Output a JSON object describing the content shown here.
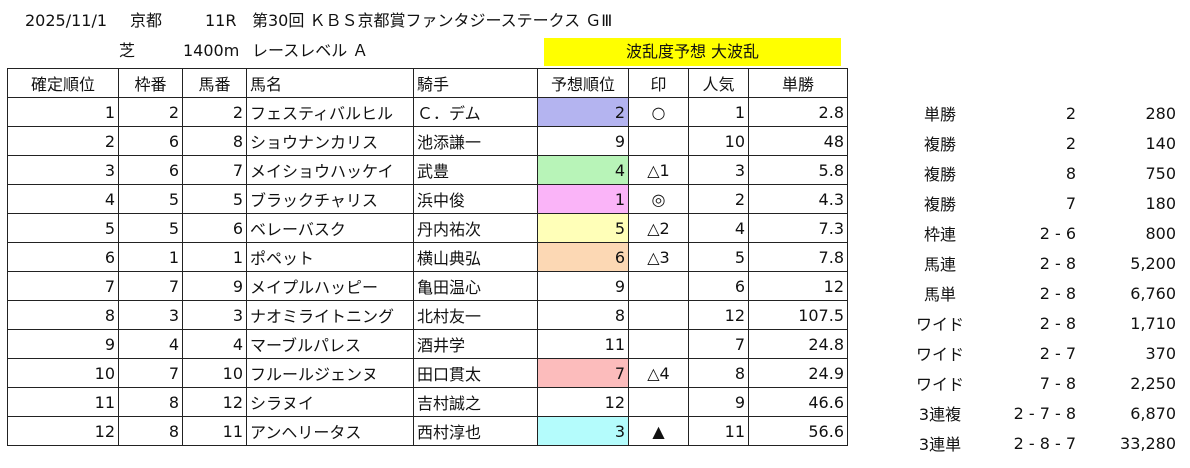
{
  "header": {
    "date": "2025/11/1",
    "venue": "京都",
    "race_no": "11R",
    "race_name": "第30回 ＫＢＳ京都賞ファンタジーステークス ＧⅢ",
    "surface": "芝",
    "distance": "1400m",
    "level": "レースレベル Ａ",
    "upset_label": "波乱度予想 大波乱"
  },
  "columns": [
    "確定順位",
    "枠番",
    "馬番",
    "馬名",
    "騎手",
    "予想順位",
    "印",
    "人気",
    "単勝"
  ],
  "colors": {
    "highlight_yellow": "#ffff00",
    "pred_2": "#b4b4f0",
    "pred_4": "#b8f4b8",
    "pred_1": "#fab4f8",
    "pred_5": "#ffffb8",
    "pred_6": "#fcd8b4",
    "pred_7": "#fcbcbc",
    "pred_3": "#b4fcfc"
  },
  "rows": [
    {
      "pos": "1",
      "waku": "2",
      "umaban": "2",
      "horse": "フェスティバルヒル",
      "jockey": "Ｃ．デム",
      "pred": "2",
      "mark": "○",
      "pop": "1",
      "odds": "2.8",
      "color": "#b4b4f0"
    },
    {
      "pos": "2",
      "waku": "6",
      "umaban": "8",
      "horse": "ショウナンカリス",
      "jockey": "池添謙一",
      "pred": "9",
      "mark": "",
      "pop": "10",
      "odds": "48",
      "color": ""
    },
    {
      "pos": "3",
      "waku": "6",
      "umaban": "7",
      "horse": "メイショウハッケイ",
      "jockey": "武豊",
      "pred": "4",
      "mark": "△1",
      "pop": "3",
      "odds": "5.8",
      "color": "#b8f4b8"
    },
    {
      "pos": "4",
      "waku": "5",
      "umaban": "5",
      "horse": "ブラックチャリス",
      "jockey": "浜中俊",
      "pred": "1",
      "mark": "◎",
      "pop": "2",
      "odds": "4.3",
      "color": "#fab4f8"
    },
    {
      "pos": "5",
      "waku": "5",
      "umaban": "6",
      "horse": "ベレーバスク",
      "jockey": "丹内祐次",
      "pred": "5",
      "mark": "△2",
      "pop": "4",
      "odds": "7.3",
      "color": "#ffffb8"
    },
    {
      "pos": "6",
      "waku": "1",
      "umaban": "1",
      "horse": "ポペット",
      "jockey": "横山典弘",
      "pred": "6",
      "mark": "△3",
      "pop": "5",
      "odds": "7.8",
      "color": "#fcd8b4"
    },
    {
      "pos": "7",
      "waku": "7",
      "umaban": "9",
      "horse": "メイプルハッピー",
      "jockey": "亀田温心",
      "pred": "9",
      "mark": "",
      "pop": "6",
      "odds": "12",
      "color": ""
    },
    {
      "pos": "8",
      "waku": "3",
      "umaban": "3",
      "horse": "ナオミライトニング",
      "jockey": "北村友一",
      "pred": "8",
      "mark": "",
      "pop": "12",
      "odds": "107.5",
      "color": ""
    },
    {
      "pos": "9",
      "waku": "4",
      "umaban": "4",
      "horse": "マーブルパレス",
      "jockey": "酒井学",
      "pred": "11",
      "mark": "",
      "pop": "7",
      "odds": "24.8",
      "color": ""
    },
    {
      "pos": "10",
      "waku": "7",
      "umaban": "10",
      "horse": "フルールジェンヌ",
      "jockey": "田口貫太",
      "pred": "7",
      "mark": "△4",
      "pop": "8",
      "odds": "24.9",
      "color": "#fcbcbc"
    },
    {
      "pos": "11",
      "waku": "8",
      "umaban": "12",
      "horse": "シラヌイ",
      "jockey": "吉村誠之",
      "pred": "12",
      "mark": "",
      "pop": "9",
      "odds": "46.6",
      "color": ""
    },
    {
      "pos": "12",
      "waku": "8",
      "umaban": "11",
      "horse": "アンヘリータス",
      "jockey": "西村淳也",
      "pred": "3",
      "mark": "▲",
      "pop": "11",
      "odds": "56.6",
      "color": "#b4fcfc"
    }
  ],
  "payouts": [
    {
      "kind": "単勝",
      "combo": "2",
      "amount": "280"
    },
    {
      "kind": "複勝",
      "combo": "2",
      "amount": "140"
    },
    {
      "kind": "複勝",
      "combo": "8",
      "amount": "750"
    },
    {
      "kind": "複勝",
      "combo": "7",
      "amount": "180"
    },
    {
      "kind": "枠連",
      "combo": "2 - 6",
      "amount": "800"
    },
    {
      "kind": "馬連",
      "combo": "2 - 8",
      "amount": "5,200"
    },
    {
      "kind": "馬単",
      "combo": "2 - 8",
      "amount": "6,760"
    },
    {
      "kind": "ワイド",
      "combo": "2 - 8",
      "amount": "1,710"
    },
    {
      "kind": "ワイド",
      "combo": "2 - 7",
      "amount": "370"
    },
    {
      "kind": "ワイド",
      "combo": "7 - 8",
      "amount": "2,250"
    },
    {
      "kind": "3連複",
      "combo": "2 - 7 - 8",
      "amount": "6,870"
    },
    {
      "kind": "3連単",
      "combo": "2 - 8 - 7",
      "amount": "33,280"
    }
  ]
}
